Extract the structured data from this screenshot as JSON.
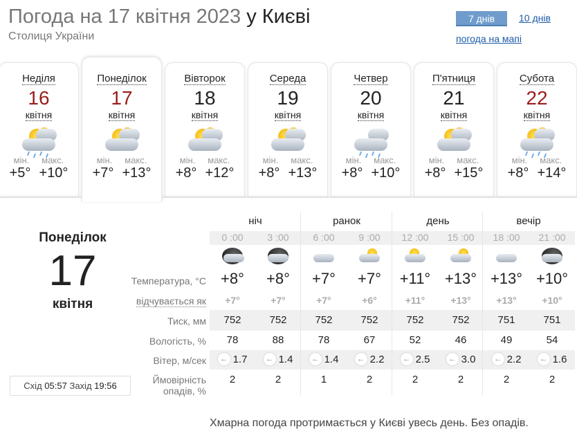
{
  "header": {
    "title_prefix": "Погода на 17 квітня 2023",
    "title_city": "у Києві",
    "subtitle": "Столиця України",
    "tab_7": "7 днів",
    "tab_10": "10 днів",
    "map_link": "погода на мапі"
  },
  "days": [
    {
      "name": "Неділя",
      "num": "16",
      "month": "квітня",
      "min_label": "мін.",
      "max_label": "макс.",
      "min": "+5°",
      "max": "+10°",
      "icon": "partly-cloudy-rain-icon",
      "red": true
    },
    {
      "name": "Понеділок",
      "num": "17",
      "month": "квітня",
      "min_label": "мін.",
      "max_label": "макс.",
      "min": "+7°",
      "max": "+13°",
      "icon": "partly-cloudy-icon",
      "red": true,
      "active": true
    },
    {
      "name": "Вівторок",
      "num": "18",
      "month": "квітня",
      "min_label": "мін.",
      "max_label": "макс.",
      "min": "+8°",
      "max": "+12°",
      "icon": "partly-cloudy-icon"
    },
    {
      "name": "Середа",
      "num": "19",
      "month": "квітня",
      "min_label": "мін.",
      "max_label": "макс.",
      "min": "+8°",
      "max": "+13°",
      "icon": "partly-cloudy-icon"
    },
    {
      "name": "Четвер",
      "num": "20",
      "month": "квітня",
      "min_label": "мін.",
      "max_label": "макс.",
      "min": "+8°",
      "max": "+10°",
      "icon": "cloudy-rain-icon"
    },
    {
      "name": "П'ятниця",
      "num": "21",
      "month": "квітня",
      "min_label": "мін.",
      "max_label": "макс.",
      "min": "+8°",
      "max": "+15°",
      "icon": "partly-cloudy-icon"
    },
    {
      "name": "Субота",
      "num": "22",
      "month": "квітня",
      "min_label": "мін.",
      "max_label": "макс.",
      "min": "+8°",
      "max": "+14°",
      "icon": "partly-cloudy-rain-icon",
      "red": true
    }
  ],
  "detail": {
    "day_name": "Понеділок",
    "day_num": "17",
    "month": "квітня",
    "sunrise_label": "Схід",
    "sunrise": "05:57",
    "sunset_label": "Захід",
    "sunset": "19:56",
    "periods": [
      "ніч",
      "ранок",
      "день",
      "вечір"
    ],
    "labels": {
      "temp": "Температура, °C",
      "feels": "відчувається як",
      "pressure": "Тиск, мм",
      "humidity": "Вологість, %",
      "wind": "Вітер, м/сек",
      "precip1": "Ймовірність",
      "precip2": "опадів, %"
    },
    "times": [
      "0 :00",
      "3 :00",
      "6 :00",
      "9 :00",
      "12 :00",
      "15 :00",
      "18 :00",
      "21 :00"
    ],
    "icons": [
      "night-cloudy-icon",
      "night-partly-cloudy-icon",
      "cloud-icon",
      "sun-cloud-icon",
      "sun-small-cloud-icon",
      "sun-cloud-icon",
      "cloud-icon",
      "night-partly-cloudy-icon"
    ],
    "temp": [
      "+8°",
      "+8°",
      "+7°",
      "+7°",
      "+11°",
      "+13°",
      "+13°",
      "+10°"
    ],
    "feels": [
      "+7°",
      "+7°",
      "+7°",
      "+6°",
      "+11°",
      "+13°",
      "+13°",
      "+10°"
    ],
    "pressure": [
      "752",
      "752",
      "752",
      "752",
      "752",
      "752",
      "751",
      "751"
    ],
    "humidity": [
      "78",
      "88",
      "78",
      "67",
      "52",
      "46",
      "49",
      "54"
    ],
    "wind": [
      "1.7",
      "1.4",
      "1.4",
      "2.2",
      "2.5",
      "3.0",
      "2.2",
      "1.6"
    ],
    "wind_dir_icon": "arrow-left-icon",
    "precip": [
      "2",
      "2",
      "1",
      "2",
      "2",
      "2",
      "2",
      "2"
    ]
  },
  "summary": "Хмарна погода протримається у Києві увесь день. Без опадів."
}
